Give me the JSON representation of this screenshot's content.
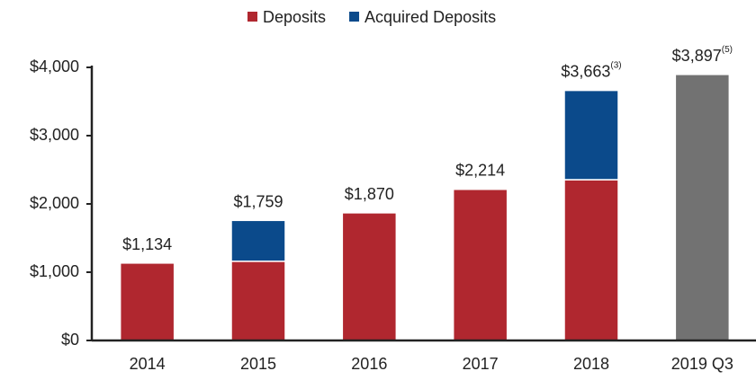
{
  "chart_data": {
    "type": "stacked_bar",
    "categories": [
      "2014",
      "2015",
      "2016",
      "2017",
      "2018",
      "2019 Q3"
    ],
    "series": [
      {
        "name": "Deposits",
        "color": "#b0272f",
        "colors": [
          "#b0272f",
          "#b0272f",
          "#b0272f",
          "#b0272f",
          "#b0272f",
          "#727272"
        ],
        "values": [
          1134,
          1160,
          1870,
          2214,
          2355,
          3897
        ]
      },
      {
        "name": "Acquired Deposits",
        "color": "#0b4a8b",
        "values": [
          null,
          599,
          null,
          null,
          1308,
          null
        ]
      }
    ],
    "totals": [
      1134,
      1759,
      1870,
      2214,
      3663,
      3897
    ],
    "total_labels": [
      "$1,134",
      "$1,759",
      "$1,870",
      "$2,214",
      "$3,663",
      "$3,897"
    ],
    "total_notes": [
      null,
      null,
      null,
      null,
      "(3)",
      "(5)"
    ],
    "ylim": [
      0,
      4000
    ],
    "yticks": [
      {
        "value": 0,
        "label": "$0"
      },
      {
        "value": 1000,
        "label": "$1,000"
      },
      {
        "value": 2000,
        "label": "$2,000"
      },
      {
        "value": 3000,
        "label": "$3,000"
      },
      {
        "value": 4000,
        "label": "$4,000"
      }
    ],
    "legend": "top"
  }
}
